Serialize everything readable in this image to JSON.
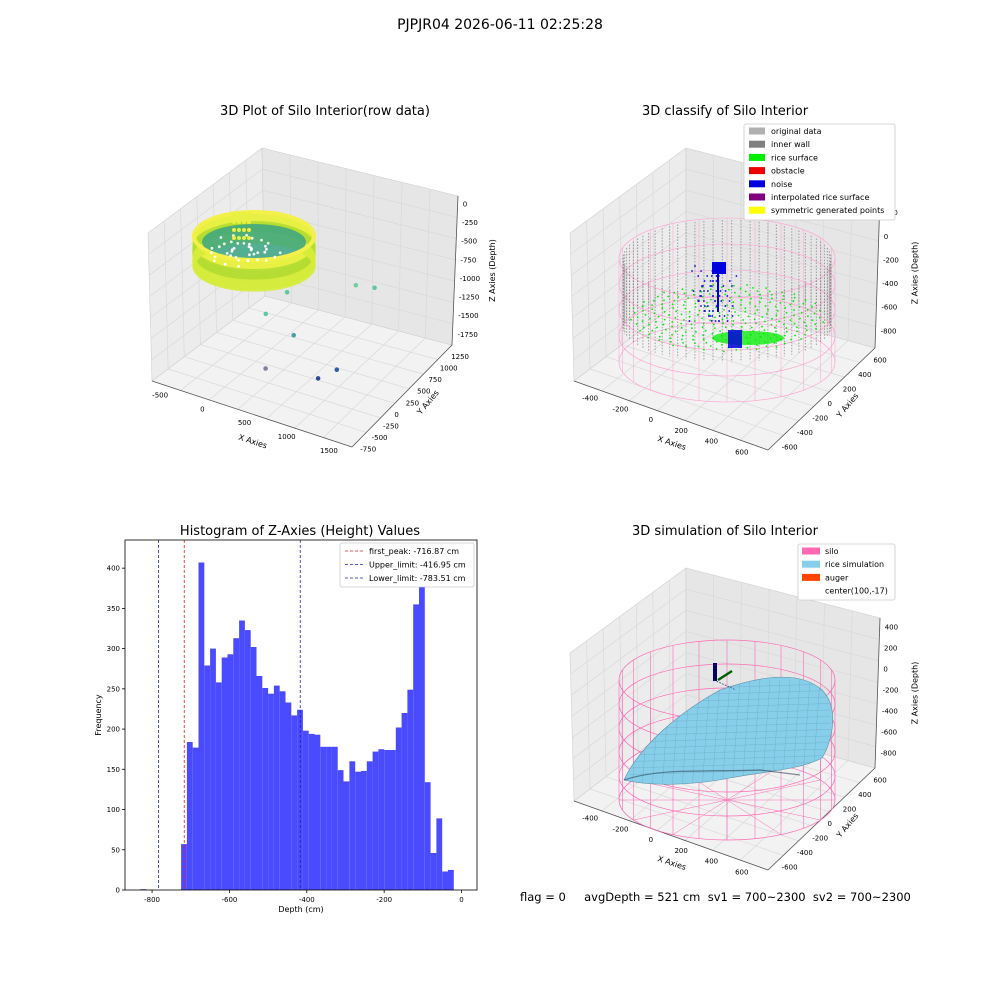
{
  "suptitle": "PJPJR04 2026-06-11 02:25:28",
  "status_line": "flag = 0     avgDepth = 521 cm  sv1 = 700~2300  sv2 = 700~2300",
  "colors": {
    "hist_bar": "#4a4aff",
    "first_peak": "#e02020",
    "limit": "#2020c0",
    "silo": "#ff69b4",
    "rice": "#87ceeb",
    "auger": "#ff4500",
    "pane": "#f2f2f2",
    "grid": "#d9d9d9"
  },
  "chart_data": [
    {
      "id": "raw",
      "type": "scatter",
      "title": "3D Plot of Silo Interior(row data)",
      "xlabel": "X Axies",
      "ylabel": "Y Axies",
      "zlabel": "Z Axies (Depth)",
      "xticks": [
        -500,
        0,
        500,
        1000,
        1500
      ],
      "yticks": [
        -750,
        -500,
        -250,
        0,
        250,
        500,
        750,
        1000,
        1250
      ],
      "zticks": [
        0,
        -250,
        -500,
        -750,
        -1000,
        -1250,
        -1500,
        -1750
      ],
      "outliers": [
        {
          "x": 250,
          "y": 400,
          "z": -1000,
          "c": "#5ec9a0"
        },
        {
          "x": 700,
          "y": 1000,
          "z": -1050,
          "c": "#6fcfa0"
        },
        {
          "x": 800,
          "y": 1200,
          "z": -1150,
          "c": "#5ec9a0"
        },
        {
          "x": 150,
          "y": 150,
          "z": -1200,
          "c": "#5ec9a0"
        },
        {
          "x": 450,
          "y": 200,
          "z": -1400,
          "c": "#4a9fa0"
        },
        {
          "x": 300,
          "y": -100,
          "z": -1750,
          "c": "#7f7f9f"
        },
        {
          "x": 900,
          "y": 300,
          "z": -1750,
          "c": "#2f5fa0"
        },
        {
          "x": 800,
          "y": 100,
          "z": -1800,
          "c": "#2a4a9a"
        }
      ]
    },
    {
      "id": "classify",
      "type": "scatter",
      "title": "3D classify of Silo Interior",
      "xlabel": "X Axies",
      "ylabel": "Y Axies",
      "zlabel": "Z Axies (Depth)",
      "xticks": [
        -400,
        -200,
        0,
        200,
        400,
        600
      ],
      "yticks": [
        -600,
        -400,
        -200,
        0,
        200,
        400,
        600
      ],
      "zticks": [
        200,
        0,
        -200,
        -400,
        -600,
        -800
      ],
      "legend": [
        {
          "label": "original data",
          "color": "#b0b0b0"
        },
        {
          "label": "inner wall",
          "color": "#808080"
        },
        {
          "label": "rice surface",
          "color": "#00ee00"
        },
        {
          "label": "obstacle",
          "color": "#ee0000"
        },
        {
          "label": "noise",
          "color": "#0000dd"
        },
        {
          "label": "interpolated rice surface",
          "color": "#800080"
        },
        {
          "label": "symmetric generated points",
          "color": "#ffff00"
        }
      ]
    },
    {
      "id": "hist",
      "type": "bar",
      "title": "Histogram of Z-Axies (Height) Values",
      "xlabel": "Depth (cm)",
      "ylabel": "Frequency",
      "xlim": [
        -870,
        40
      ],
      "ylim": [
        0,
        435
      ],
      "xticks": [
        -800,
        -600,
        -400,
        -200,
        0
      ],
      "yticks": [
        0,
        50,
        100,
        150,
        200,
        250,
        300,
        350,
        400
      ],
      "bin_width": 15,
      "bin_start": -830,
      "values": [
        1,
        0,
        0,
        0,
        0,
        0,
        0,
        57,
        184,
        177,
        407,
        279,
        300,
        258,
        289,
        293,
        313,
        335,
        323,
        302,
        266,
        251,
        244,
        254,
        247,
        233,
        217,
        224,
        198,
        194,
        193,
        178,
        178,
        178,
        149,
        135,
        160,
        147,
        148,
        160,
        172,
        175,
        174,
        174,
        202,
        220,
        249,
        355,
        412,
        134,
        46,
        89,
        23,
        25
      ],
      "lines": [
        {
          "label": "first_peak: -716.87 cm",
          "x": -716.87,
          "color": "#e02020"
        },
        {
          "label": "Upper_limit: -416.95 cm",
          "x": -416.95,
          "color": "#2020c0"
        },
        {
          "label": "Lower_limit: -783.51 cm",
          "x": -783.51,
          "color": "#2020c0"
        }
      ]
    },
    {
      "id": "simulation",
      "type": "area",
      "title": "3D simulation of Silo Interior",
      "xlabel": "X Axies",
      "ylabel": "Y Axies",
      "zlabel": "Z Axies (Depth)",
      "xticks": [
        -400,
        -200,
        0,
        200,
        400,
        600
      ],
      "yticks": [
        -600,
        -400,
        -200,
        0,
        200,
        400,
        600
      ],
      "zticks": [
        400,
        200,
        0,
        -200,
        -400,
        -600,
        -800
      ],
      "legend": [
        {
          "label": "silo",
          "color": "#ff69b4"
        },
        {
          "label": "rice simulation",
          "color": "#87ceeb"
        },
        {
          "label": "auger",
          "color": "#ff4500"
        },
        {
          "label": "center(100,-17)",
          "color": ""
        }
      ]
    }
  ]
}
